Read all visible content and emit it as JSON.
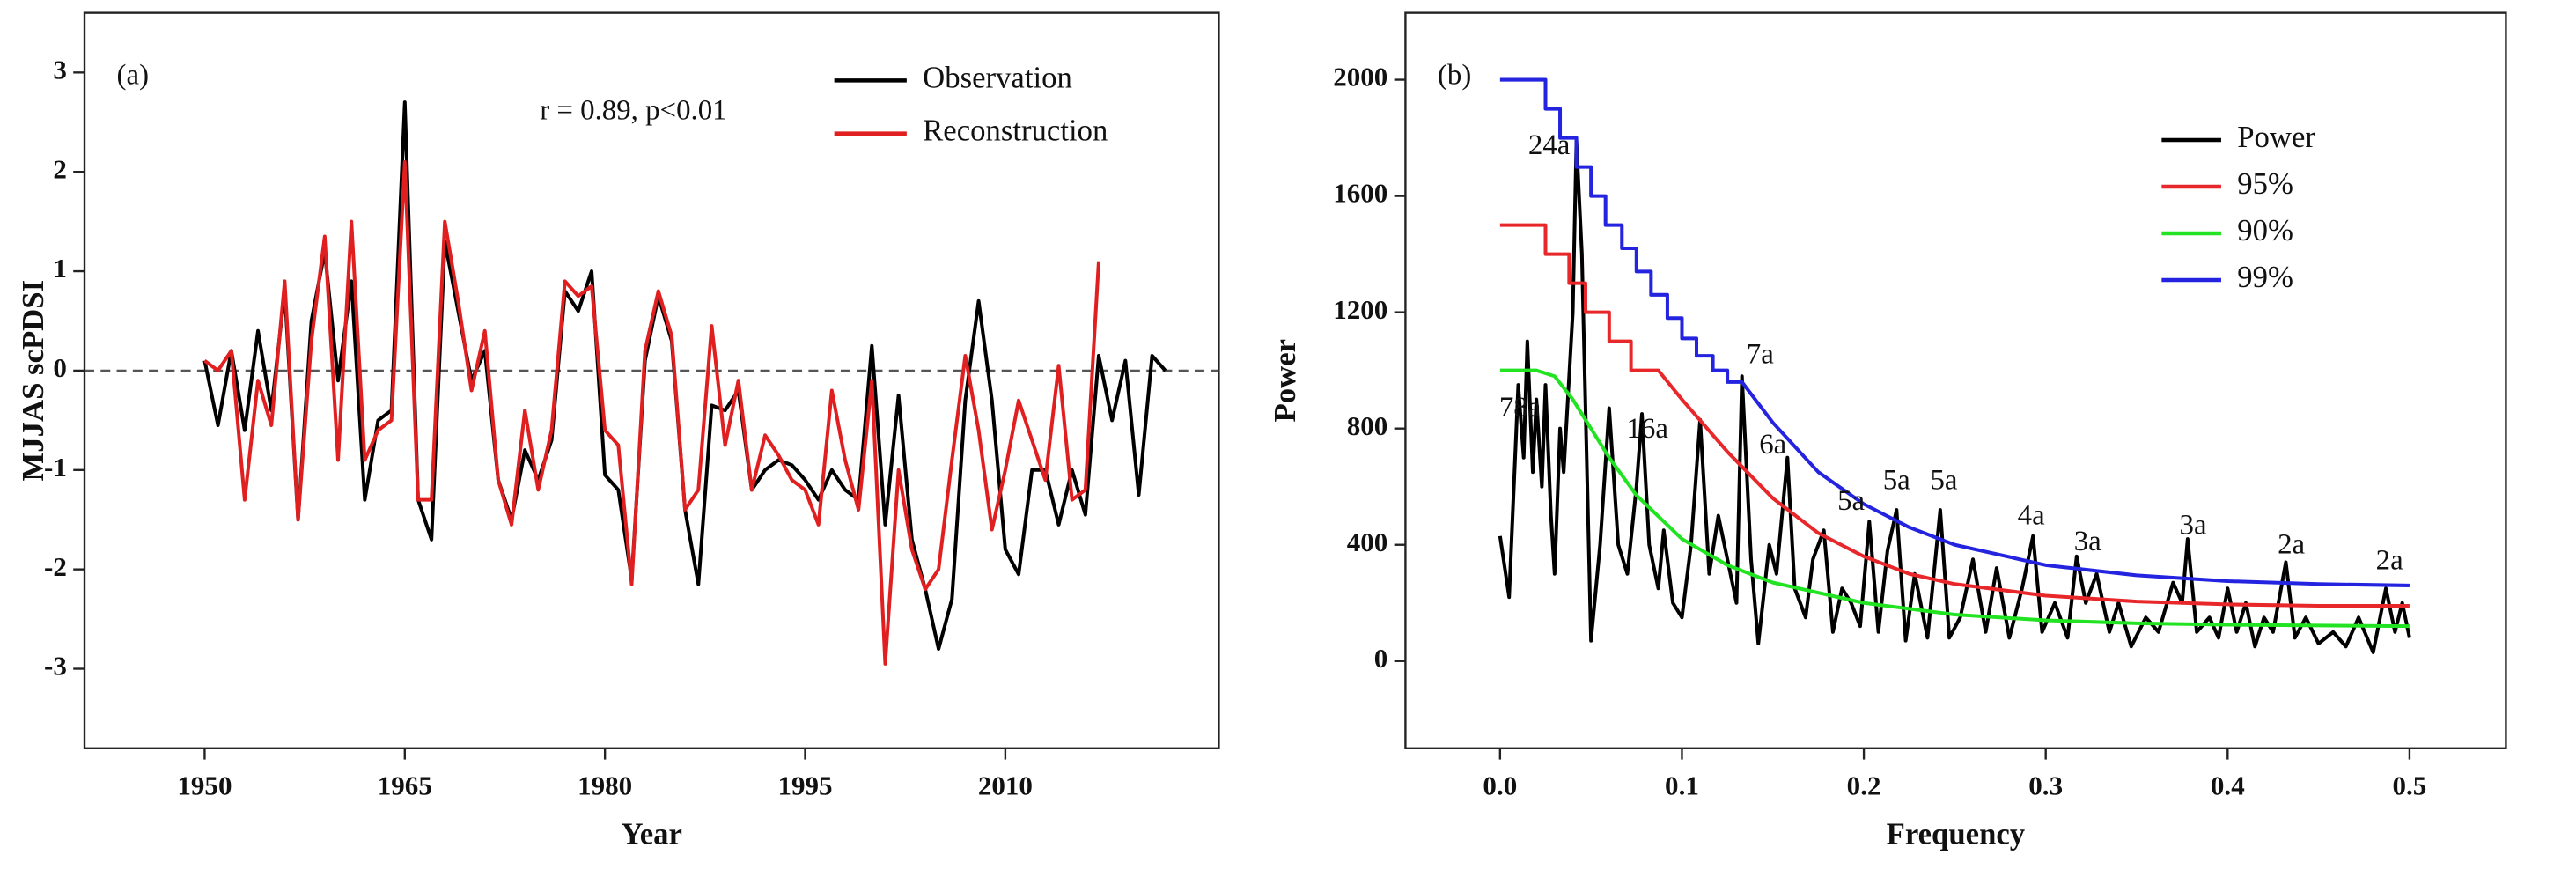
{
  "chart_data": [
    {
      "type": "line",
      "panel_label": "(a)",
      "stat_text": "r = 0.89, p<0.01",
      "xlabel": "Year",
      "ylabel": "MJJAS scPDSI",
      "xlim": [
        1941,
        2026
      ],
      "xticks": [
        1950,
        1965,
        1980,
        1995,
        2010
      ],
      "ylim": [
        -3.8,
        3.6
      ],
      "yticks": [
        -3,
        -2,
        -1,
        0,
        1,
        2,
        3
      ],
      "hline": 0,
      "legend": "upper right",
      "x": [
        1950,
        1951,
        1952,
        1953,
        1954,
        1955,
        1956,
        1957,
        1958,
        1959,
        1960,
        1961,
        1962,
        1963,
        1964,
        1965,
        1966,
        1967,
        1968,
        1969,
        1970,
        1971,
        1972,
        1973,
        1974,
        1975,
        1976,
        1977,
        1978,
        1979,
        1980,
        1981,
        1982,
        1983,
        1984,
        1985,
        1986,
        1987,
        1988,
        1989,
        1990,
        1991,
        1992,
        1993,
        1994,
        1995,
        1996,
        1997,
        1998,
        1999,
        2000,
        2001,
        2002,
        2003,
        2004,
        2005,
        2006,
        2007,
        2008,
        2009,
        2010,
        2011,
        2012,
        2013,
        2014,
        2015,
        2016,
        2017,
        2018,
        2019,
        2020,
        2021,
        2022
      ],
      "series": [
        {
          "name": "Observation",
          "color": "#000000",
          "values": [
            0.1,
            -0.55,
            0.2,
            -0.6,
            0.4,
            -0.4,
            0.8,
            -1.5,
            0.5,
            1.2,
            -0.1,
            0.9,
            -1.3,
            -0.5,
            -0.4,
            2.7,
            -1.3,
            -1.7,
            1.3,
            0.6,
            -0.1,
            0.2,
            -1.1,
            -1.5,
            -0.8,
            -1.1,
            -0.7,
            0.8,
            0.6,
            1.0,
            -1.05,
            -1.2,
            -2.1,
            0.1,
            0.75,
            0.3,
            -1.4,
            -2.15,
            -0.35,
            -0.4,
            -0.2,
            -1.2,
            -1.0,
            -0.9,
            -0.95,
            -1.1,
            -1.3,
            -1.0,
            -1.2,
            -1.3,
            0.25,
            -1.55,
            -0.25,
            -1.7,
            -2.2,
            -2.8,
            -2.3,
            -0.3,
            0.7,
            -0.3,
            -1.8,
            -2.05,
            -1.0,
            -1.0,
            -1.55,
            -1.0,
            -1.45,
            0.15,
            -0.5,
            0.1,
            -1.25,
            0.15,
            0.0
          ]
        },
        {
          "name": "Reconstruction",
          "color": "#e02020",
          "values": [
            0.1,
            0.0,
            0.2,
            -1.3,
            -0.1,
            -0.55,
            0.9,
            -1.5,
            0.3,
            1.35,
            -0.9,
            1.5,
            -0.9,
            -0.6,
            -0.5,
            2.1,
            -1.3,
            -1.3,
            1.5,
            0.7,
            -0.2,
            0.4,
            -1.1,
            -1.55,
            -0.4,
            -1.2,
            -0.6,
            0.9,
            0.75,
            0.85,
            -0.6,
            -0.75,
            -2.15,
            0.2,
            0.8,
            0.35,
            -1.4,
            -1.2,
            0.45,
            -0.75,
            -0.1,
            -1.2,
            -0.65,
            -0.85,
            -1.1,
            -1.2,
            -1.55,
            -0.2,
            -0.9,
            -1.4,
            -0.1,
            -2.95,
            -1.0,
            -1.8,
            -2.2,
            -2.0,
            -0.9,
            0.15,
            -0.6,
            -1.6,
            -1.0,
            -0.3,
            -0.7,
            -1.1,
            0.05,
            -1.3,
            -1.2,
            1.1,
            null,
            null,
            null,
            null,
            null
          ]
        }
      ]
    },
    {
      "type": "line",
      "panel_label": "(b)",
      "xlabel": "Frequency",
      "ylabel": "Power",
      "xlim": [
        -0.052,
        0.553
      ],
      "xticks": [
        {
          "value": 0,
          "label": "0.0"
        },
        0.1,
        0.2,
        0.3,
        0.4,
        0.5
      ],
      "ylim": [
        -300,
        2230
      ],
      "yticks": [
        0,
        400,
        800,
        1200,
        1600,
        2000
      ],
      "legend": "upper right",
      "series": [
        {
          "name": "Power",
          "color": "#000000",
          "x": [
            0,
            0.005,
            0.01,
            0.013,
            0.015,
            0.018,
            0.02,
            0.023,
            0.025,
            0.028,
            0.03,
            0.033,
            0.035,
            0.04,
            0.042,
            0.045,
            0.048,
            0.05,
            0.055,
            0.06,
            0.065,
            0.07,
            0.075,
            0.078,
            0.082,
            0.087,
            0.09,
            0.095,
            0.1,
            0.105,
            0.11,
            0.115,
            0.12,
            0.125,
            0.13,
            0.133,
            0.138,
            0.142,
            0.148,
            0.152,
            0.158,
            0.162,
            0.168,
            0.172,
            0.178,
            0.183,
            0.188,
            0.193,
            0.198,
            0.203,
            0.208,
            0.213,
            0.218,
            0.223,
            0.228,
            0.235,
            0.242,
            0.247,
            0.253,
            0.26,
            0.267,
            0.273,
            0.28,
            0.287,
            0.293,
            0.298,
            0.305,
            0.312,
            0.317,
            0.322,
            0.328,
            0.335,
            0.34,
            0.347,
            0.355,
            0.362,
            0.37,
            0.375,
            0.378,
            0.383,
            0.39,
            0.395,
            0.4,
            0.405,
            0.41,
            0.415,
            0.42,
            0.425,
            0.432,
            0.437,
            0.443,
            0.45,
            0.458,
            0.465,
            0.472,
            0.48,
            0.487,
            0.492,
            0.496,
            0.5
          ],
          "values": [
            430,
            220,
            950,
            700,
            1100,
            650,
            900,
            600,
            950,
            500,
            300,
            800,
            650,
            1200,
            1790,
            1400,
            600,
            70,
            400,
            870,
            400,
            300,
            600,
            850,
            400,
            250,
            450,
            200,
            150,
            400,
            830,
            300,
            500,
            350,
            200,
            980,
            350,
            60,
            400,
            300,
            700,
            250,
            150,
            350,
            450,
            100,
            250,
            200,
            120,
            480,
            100,
            380,
            520,
            70,
            300,
            80,
            520,
            80,
            150,
            350,
            100,
            320,
            80,
            250,
            430,
            100,
            200,
            80,
            360,
            200,
            300,
            100,
            200,
            50,
            150,
            100,
            270,
            200,
            420,
            100,
            150,
            80,
            250,
            100,
            200,
            50,
            150,
            100,
            340,
            80,
            150,
            60,
            100,
            50,
            150,
            30,
            250,
            100,
            200,
            80
          ]
        },
        {
          "name": "95%",
          "color": "#e8272a",
          "x": [
            0,
            0.025,
            0.025,
            0.038,
            0.038,
            0.047,
            0.047,
            0.06,
            0.06,
            0.072,
            0.072,
            0.087,
            0.1,
            0.125,
            0.15,
            0.175,
            0.2,
            0.225,
            0.25,
            0.3,
            0.35,
            0.4,
            0.45,
            0.5
          ],
          "values": [
            1500,
            1500,
            1400,
            1400,
            1300,
            1300,
            1200,
            1200,
            1100,
            1100,
            1000,
            1000,
            900,
            720,
            560,
            440,
            360,
            300,
            265,
            225,
            205,
            195,
            190,
            190
          ]
        },
        {
          "name": "90%",
          "color": "#22e322",
          "x": [
            0,
            0.02,
            0.03,
            0.04,
            0.05,
            0.06,
            0.075,
            0.1,
            0.125,
            0.15,
            0.2,
            0.25,
            0.3,
            0.35,
            0.4,
            0.5
          ],
          "values": [
            1000,
            1000,
            980,
            900,
            800,
            700,
            570,
            420,
            330,
            270,
            200,
            160,
            140,
            130,
            125,
            120
          ]
        },
        {
          "name": "99%",
          "color": "#2323e0",
          "x": [
            0,
            0.025,
            0.025,
            0.033,
            0.033,
            0.042,
            0.042,
            0.05,
            0.05,
            0.058,
            0.058,
            0.067,
            0.067,
            0.075,
            0.075,
            0.083,
            0.083,
            0.092,
            0.092,
            0.1,
            0.1,
            0.108,
            0.108,
            0.117,
            0.117,
            0.125,
            0.125,
            0.133,
            0.15,
            0.175,
            0.2,
            0.225,
            0.25,
            0.3,
            0.35,
            0.4,
            0.45,
            0.5
          ],
          "values": [
            2000,
            2000,
            1900,
            1900,
            1800,
            1800,
            1700,
            1700,
            1600,
            1600,
            1500,
            1500,
            1420,
            1420,
            1340,
            1340,
            1260,
            1260,
            1180,
            1180,
            1110,
            1110,
            1050,
            1050,
            1000,
            1000,
            960,
            960,
            820,
            650,
            540,
            460,
            400,
            330,
            295,
            275,
            265,
            260
          ]
        }
      ],
      "peak_labels": [
        {
          "text": "24a",
          "x": 0.027,
          "y": 1767
        },
        {
          "text": "78a",
          "x": 0.011,
          "y": 864
        },
        {
          "text": "16a",
          "x": 0.081,
          "y": 792
        },
        {
          "text": "7a",
          "x": 0.143,
          "y": 1047
        },
        {
          "text": "6a",
          "x": 0.15,
          "y": 737
        },
        {
          "text": "5a",
          "x": 0.193,
          "y": 543
        },
        {
          "text": "5a",
          "x": 0.218,
          "y": 615
        },
        {
          "text": "5a",
          "x": 0.244,
          "y": 615
        },
        {
          "text": "4a",
          "x": 0.292,
          "y": 493
        },
        {
          "text": "3a",
          "x": 0.323,
          "y": 404
        },
        {
          "text": "3a",
          "x": 0.381,
          "y": 460
        },
        {
          "text": "2a",
          "x": 0.435,
          "y": 393
        },
        {
          "text": "2a",
          "x": 0.489,
          "y": 338
        }
      ]
    }
  ]
}
